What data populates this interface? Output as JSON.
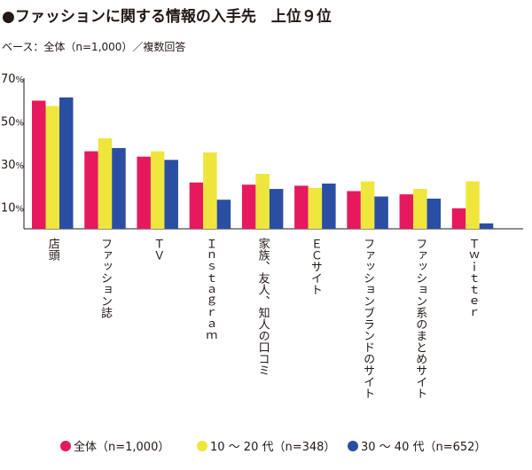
{
  "header": {
    "title": "●ファッションに関する情報の入手先　上位９位",
    "subtitle": "ベース：全体（n=1,000）／複数回答"
  },
  "chart_data": {
    "type": "bar",
    "title": "ファッションに関する情報の入手先　上位９位",
    "ylim": [
      0,
      70
    ],
    "yticks": [
      {
        "value": 10,
        "label": "10",
        "unit": "%"
      },
      {
        "value": 30,
        "label": "30",
        "unit": "%"
      },
      {
        "value": 50,
        "label": "50",
        "unit": "%"
      },
      {
        "value": 70,
        "label": "70",
        "unit": "%"
      }
    ],
    "categories": [
      "店頭",
      "ファッション誌",
      "ＴＶ",
      "Ｉｎｓｔａｇｒａｍ",
      "家族、友人、知人の口コミ",
      "ＥＣサイト",
      "ファッションブランドのサイト",
      "ファッション系のまとめサイト",
      "Ｔｗｉｔｔｅｒ"
    ],
    "series": [
      {
        "name": "全体（n=1,000）",
        "color": "#E6195F",
        "values": [
          59.5,
          36,
          33.5,
          21.5,
          20.5,
          20,
          17.5,
          16,
          9.5
        ]
      },
      {
        "name": "10 〜 20 代（n=348）",
        "color": "#EFE63D",
        "values": [
          57,
          42,
          36,
          35.5,
          25.5,
          19,
          22,
          18.5,
          22
        ]
      },
      {
        "name": "30 〜 40 代（n=652）",
        "color": "#2A4FA2",
        "values": [
          61,
          37.5,
          32,
          13.5,
          18.5,
          21,
          15,
          14,
          2.5
        ]
      }
    ],
    "grid": false,
    "legend_position": "bottom"
  }
}
